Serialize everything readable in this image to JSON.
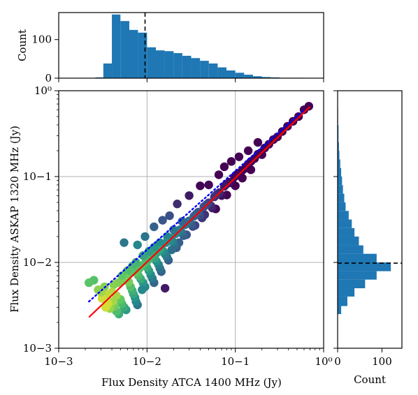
{
  "chart_data": {
    "type": "scatter",
    "xlabel": "Flux Density ATCA 1400 MHz (Jy)",
    "ylabel": "Flux Density ASKAP 1320 MHz (Jy)",
    "x_scale": "log",
    "y_scale": "log",
    "xlim": [
      0.001,
      1.0
    ],
    "ylim": [
      0.001,
      1.0
    ],
    "grid": true,
    "colormap": "viridis",
    "x_tick_labels": [
      "10−3",
      "10−2",
      "10−1",
      "10⁰"
    ],
    "y_tick_labels": [
      "10−3",
      "10−2",
      "10−1",
      "10⁰"
    ],
    "x_tick_values": [
      0.001,
      0.01,
      0.1,
      1.0
    ],
    "y_tick_values": [
      0.001,
      0.01,
      0.1,
      1.0
    ],
    "fit_line": {
      "color": "#ff0000",
      "style": "solid",
      "x": [
        0.0022,
        0.7
      ],
      "y": [
        0.0023,
        0.65
      ]
    },
    "identity_line": {
      "color": "#0000ff",
      "style": "dotted",
      "x": [
        0.0022,
        0.6
      ],
      "y": [
        0.0035,
        0.6
      ]
    },
    "points": [
      [
        0.0022,
        0.0058
      ],
      [
        0.0025,
        0.0062
      ],
      [
        0.0028,
        0.0048
      ],
      [
        0.003,
        0.0045
      ],
      [
        0.0033,
        0.0052
      ],
      [
        0.0035,
        0.0042
      ],
      [
        0.0031,
        0.0038
      ],
      [
        0.0036,
        0.0033
      ],
      [
        0.0034,
        0.003
      ],
      [
        0.0038,
        0.0029
      ],
      [
        0.0041,
        0.0035
      ],
      [
        0.0043,
        0.0031
      ],
      [
        0.0045,
        0.0027
      ],
      [
        0.0048,
        0.0025
      ],
      [
        0.004,
        0.0045
      ],
      [
        0.0045,
        0.0041
      ],
      [
        0.005,
        0.0037
      ],
      [
        0.0052,
        0.0033
      ],
      [
        0.0055,
        0.003
      ],
      [
        0.0058,
        0.0028
      ],
      [
        0.0042,
        0.0055
      ],
      [
        0.0047,
        0.0058
      ],
      [
        0.0053,
        0.0061
      ],
      [
        0.0058,
        0.0065
      ],
      [
        0.0062,
        0.0059
      ],
      [
        0.0065,
        0.0052
      ],
      [
        0.0068,
        0.0047
      ],
      [
        0.007,
        0.0043
      ],
      [
        0.0073,
        0.0039
      ],
      [
        0.0075,
        0.0035
      ],
      [
        0.0078,
        0.0032
      ],
      [
        0.006,
        0.0072
      ],
      [
        0.0065,
        0.0078
      ],
      [
        0.007,
        0.0082
      ],
      [
        0.0075,
        0.0076
      ],
      [
        0.008,
        0.007
      ],
      [
        0.0085,
        0.0064
      ],
      [
        0.009,
        0.0058
      ],
      [
        0.0095,
        0.0052
      ],
      [
        0.0088,
        0.0048
      ],
      [
        0.0082,
        0.0085
      ],
      [
        0.0088,
        0.0092
      ],
      [
        0.0095,
        0.0098
      ],
      [
        0.01,
        0.0088
      ],
      [
        0.0105,
        0.008
      ],
      [
        0.011,
        0.0072
      ],
      [
        0.0115,
        0.0065
      ],
      [
        0.012,
        0.0058
      ],
      [
        0.0102,
        0.0106
      ],
      [
        0.0108,
        0.0115
      ],
      [
        0.0115,
        0.0121
      ],
      [
        0.0122,
        0.0112
      ],
      [
        0.0128,
        0.0103
      ],
      [
        0.0135,
        0.0094
      ],
      [
        0.014,
        0.0085
      ],
      [
        0.0145,
        0.0078
      ],
      [
        0.013,
        0.013
      ],
      [
        0.0138,
        0.014
      ],
      [
        0.0145,
        0.0148
      ],
      [
        0.0152,
        0.0136
      ],
      [
        0.016,
        0.0125
      ],
      [
        0.0168,
        0.0116
      ],
      [
        0.0175,
        0.0106
      ],
      [
        0.0165,
        0.017
      ],
      [
        0.0175,
        0.0182
      ],
      [
        0.0185,
        0.019
      ],
      [
        0.0195,
        0.0175
      ],
      [
        0.0205,
        0.016
      ],
      [
        0.0215,
        0.0148
      ],
      [
        0.021,
        0.0215
      ],
      [
        0.0222,
        0.0228
      ],
      [
        0.0235,
        0.024
      ],
      [
        0.0248,
        0.0222
      ],
      [
        0.026,
        0.0205
      ],
      [
        0.027,
        0.0275
      ],
      [
        0.0285,
        0.029
      ],
      [
        0.03,
        0.0305
      ],
      [
        0.0315,
        0.028
      ],
      [
        0.033,
        0.0262
      ],
      [
        0.034,
        0.0345
      ],
      [
        0.036,
        0.0365
      ],
      [
        0.038,
        0.0385
      ],
      [
        0.04,
        0.0352
      ],
      [
        0.042,
        0.033
      ],
      [
        0.044,
        0.0445
      ],
      [
        0.047,
        0.047
      ],
      [
        0.05,
        0.0495
      ],
      [
        0.053,
        0.0455
      ],
      [
        0.055,
        0.043
      ],
      [
        0.058,
        0.058
      ],
      [
        0.062,
        0.062
      ],
      [
        0.066,
        0.065
      ],
      [
        0.07,
        0.06
      ],
      [
        0.075,
        0.077
      ],
      [
        0.08,
        0.082
      ],
      [
        0.086,
        0.086
      ],
      [
        0.092,
        0.084
      ],
      [
        0.098,
        0.099
      ],
      [
        0.105,
        0.106
      ],
      [
        0.112,
        0.11
      ],
      [
        0.12,
        0.118
      ],
      [
        0.13,
        0.125
      ],
      [
        0.14,
        0.14
      ],
      [
        0.15,
        0.15
      ],
      [
        0.165,
        0.162
      ],
      [
        0.18,
        0.182
      ],
      [
        0.195,
        0.19
      ],
      [
        0.215,
        0.215
      ],
      [
        0.24,
        0.238
      ],
      [
        0.27,
        0.27
      ],
      [
        0.3,
        0.29
      ],
      [
        0.34,
        0.335
      ],
      [
        0.39,
        0.385
      ],
      [
        0.45,
        0.44
      ],
      [
        0.52,
        0.5
      ],
      [
        0.6,
        0.6
      ],
      [
        0.68,
        0.66
      ],
      [
        0.0078,
        0.016
      ],
      [
        0.0095,
        0.02
      ],
      [
        0.012,
        0.026
      ],
      [
        0.015,
        0.031
      ],
      [
        0.018,
        0.035
      ],
      [
        0.022,
        0.048
      ],
      [
        0.03,
        0.06
      ],
      [
        0.04,
        0.078
      ],
      [
        0.05,
        0.08
      ],
      [
        0.065,
        0.105
      ],
      [
        0.075,
        0.13
      ],
      [
        0.09,
        0.15
      ],
      [
        0.11,
        0.17
      ],
      [
        0.14,
        0.2
      ],
      [
        0.18,
        0.25
      ],
      [
        0.06,
        0.042
      ],
      [
        0.08,
        0.061
      ],
      [
        0.1,
        0.078
      ],
      [
        0.12,
        0.096
      ],
      [
        0.15,
        0.12
      ],
      [
        0.2,
        0.18
      ],
      [
        0.0055,
        0.017
      ],
      [
        0.016,
        0.005
      ],
      [
        0.012,
        0.015
      ],
      [
        0.014,
        0.017
      ],
      [
        0.017,
        0.02
      ],
      [
        0.02,
        0.024
      ],
      [
        0.025,
        0.03
      ],
      [
        0.019,
        0.014
      ],
      [
        0.023,
        0.017
      ],
      [
        0.028,
        0.021
      ],
      [
        0.035,
        0.027
      ],
      [
        0.045,
        0.036
      ],
      [
        0.0075,
        0.01
      ],
      [
        0.009,
        0.012
      ],
      [
        0.0105,
        0.0135
      ],
      [
        0.0068,
        0.009
      ],
      [
        0.006,
        0.008
      ],
      [
        0.0052,
        0.007
      ]
    ],
    "top_histogram": {
      "ylabel": "Count",
      "y_tick_labels": [
        "0",
        "100"
      ],
      "y_tick_values": [
        0,
        100
      ],
      "ylim": [
        0,
        170
      ],
      "bin_edges": [
        0.0026,
        0.0032,
        0.004,
        0.005,
        0.0063,
        0.0079,
        0.01,
        0.0126,
        0.0158,
        0.02,
        0.0251,
        0.0316,
        0.0398,
        0.0501,
        0.0631,
        0.0794,
        0.1,
        0.1259,
        0.1585,
        0.1995,
        0.2512,
        0.3162,
        0.3981,
        0.5012,
        0.631
      ],
      "counts": [
        2,
        38,
        165,
        148,
        125,
        118,
        80,
        72,
        70,
        65,
        58,
        52,
        45,
        38,
        28,
        20,
        14,
        9,
        5,
        3,
        2,
        1,
        1,
        1
      ],
      "median_marker": 0.0095
    },
    "right_histogram": {
      "xlabel": "Count",
      "x_tick_labels": [
        "0",
        "100"
      ],
      "x_tick_values": [
        0,
        100
      ],
      "xlim": [
        0,
        145
      ],
      "bin_edges": [
        0.0025,
        0.0031,
        0.004,
        0.005,
        0.0063,
        0.0079,
        0.01,
        0.0126,
        0.0158,
        0.02,
        0.0251,
        0.0316,
        0.0398,
        0.0501,
        0.0631,
        0.0794,
        0.1,
        0.1259,
        0.1585,
        0.1995,
        0.2512,
        0.3162,
        0.3981,
        0.5012,
        0.631
      ],
      "counts": [
        8,
        22,
        38,
        62,
        88,
        120,
        88,
        58,
        48,
        38,
        32,
        25,
        18,
        15,
        12,
        10,
        8,
        6,
        4,
        3,
        2,
        2,
        1,
        1
      ],
      "median_marker": 0.0098
    }
  }
}
